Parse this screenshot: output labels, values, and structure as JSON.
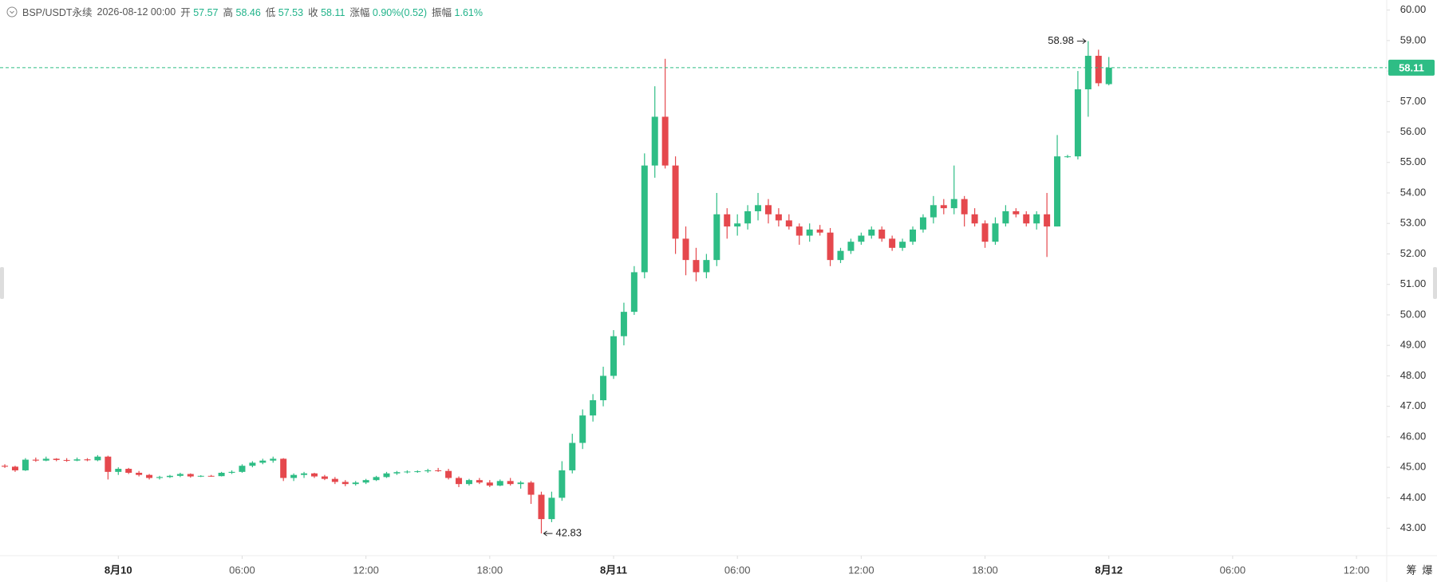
{
  "chart_data": {
    "type": "candlestick",
    "header": {
      "symbol": "BSP/USDT永续",
      "time": "2026-08-12 00:00",
      "fields": [
        {
          "label": "开",
          "value": 57.57
        },
        {
          "label": "高",
          "value": 58.46
        },
        {
          "label": "低",
          "value": 57.53
        },
        {
          "label": "收",
          "value": 58.11
        },
        {
          "label": "涨幅",
          "value": "0.90%(0.52)"
        },
        {
          "label": "振幅",
          "value": "1.61%"
        }
      ]
    },
    "up_color": "#2ebd85",
    "down_color": "#e5484d",
    "x": [
      "2026-08-09 18:30",
      "2026-08-09 19:00",
      "2026-08-09 19:30",
      "2026-08-09 20:00",
      "2026-08-09 20:30",
      "2026-08-09 21:00",
      "2026-08-09 21:30",
      "2026-08-09 22:00",
      "2026-08-09 22:30",
      "2026-08-09 23:00",
      "2026-08-09 23:30",
      "2026-08-10 00:00",
      "2026-08-10 00:30",
      "2026-08-10 01:00",
      "2026-08-10 01:30",
      "2026-08-10 02:00",
      "2026-08-10 02:30",
      "2026-08-10 03:00",
      "2026-08-10 03:30",
      "2026-08-10 04:00",
      "2026-08-10 04:30",
      "2026-08-10 05:00",
      "2026-08-10 05:30",
      "2026-08-10 06:00",
      "2026-08-10 06:30",
      "2026-08-10 07:00",
      "2026-08-10 07:30",
      "2026-08-10 08:00",
      "2026-08-10 08:30",
      "2026-08-10 09:00",
      "2026-08-10 09:30",
      "2026-08-10 10:00",
      "2026-08-10 10:30",
      "2026-08-10 11:00",
      "2026-08-10 11:30",
      "2026-08-10 12:00",
      "2026-08-10 12:30",
      "2026-08-10 13:00",
      "2026-08-10 13:30",
      "2026-08-10 14:00",
      "2026-08-10 14:30",
      "2026-08-10 15:00",
      "2026-08-10 15:30",
      "2026-08-10 16:00",
      "2026-08-10 16:30",
      "2026-08-10 17:00",
      "2026-08-10 17:30",
      "2026-08-10 18:00",
      "2026-08-10 18:30",
      "2026-08-10 19:00",
      "2026-08-10 19:30",
      "2026-08-10 20:00",
      "2026-08-10 20:30",
      "2026-08-10 21:00",
      "2026-08-10 21:30",
      "2026-08-10 22:00",
      "2026-08-10 22:30",
      "2026-08-10 23:00",
      "2026-08-10 23:30",
      "2026-08-11 00:00",
      "2026-08-11 00:30",
      "2026-08-11 01:00",
      "2026-08-11 01:30",
      "2026-08-11 02:00",
      "2026-08-11 02:30",
      "2026-08-11 03:00",
      "2026-08-11 03:30",
      "2026-08-11 04:00",
      "2026-08-11 04:30",
      "2026-08-11 05:00",
      "2026-08-11 05:30",
      "2026-08-11 06:00",
      "2026-08-11 06:30",
      "2026-08-11 07:00",
      "2026-08-11 07:30",
      "2026-08-11 08:00",
      "2026-08-11 08:30",
      "2026-08-11 09:00",
      "2026-08-11 09:30",
      "2026-08-11 10:00",
      "2026-08-11 10:30",
      "2026-08-11 11:00",
      "2026-08-11 11:30",
      "2026-08-11 12:00",
      "2026-08-11 12:30",
      "2026-08-11 13:00",
      "2026-08-11 13:30",
      "2026-08-11 14:00",
      "2026-08-11 14:30",
      "2026-08-11 15:00",
      "2026-08-11 15:30",
      "2026-08-11 16:00",
      "2026-08-11 16:30",
      "2026-08-11 17:00",
      "2026-08-11 17:30",
      "2026-08-11 18:00",
      "2026-08-11 18:30",
      "2026-08-11 19:00",
      "2026-08-11 19:30",
      "2026-08-11 20:00",
      "2026-08-11 20:30",
      "2026-08-11 21:00",
      "2026-08-11 21:30",
      "2026-08-11 22:00",
      "2026-08-11 22:30",
      "2026-08-11 23:00",
      "2026-08-11 23:30",
      "2026-08-12 00:00"
    ],
    "open": [
      45.05,
      45.02,
      44.9,
      45.25,
      45.22,
      45.28,
      45.24,
      45.22,
      45.26,
      45.23,
      45.35,
      44.85,
      44.95,
      44.82,
      44.75,
      44.65,
      44.68,
      44.72,
      44.78,
      44.7,
      44.72,
      44.71,
      44.82,
      44.85,
      45.05,
      45.15,
      45.22,
      45.28,
      44.65,
      44.75,
      44.8,
      44.7,
      44.62,
      44.52,
      44.45,
      44.5,
      44.58,
      44.68,
      44.8,
      44.84,
      44.86,
      44.87,
      44.9,
      44.88,
      44.65,
      44.45,
      44.58,
      44.5,
      44.4,
      44.55,
      44.45,
      44.5,
      44.1,
      43.3,
      44.0,
      44.9,
      45.8,
      46.7,
      47.2,
      48.0,
      49.3,
      50.1,
      51.4,
      54.9,
      56.5,
      54.9,
      52.5,
      51.8,
      51.4,
      51.8,
      53.3,
      52.9,
      53.0,
      53.4,
      53.6,
      53.3,
      53.1,
      52.9,
      52.6,
      52.8,
      52.7,
      51.8,
      52.1,
      52.4,
      52.6,
      52.8,
      52.5,
      52.2,
      52.4,
      52.8,
      53.2,
      53.6,
      53.5,
      53.8,
      53.3,
      53.0,
      52.4,
      53.0,
      53.4,
      53.3,
      53.0,
      53.3,
      52.9,
      55.2,
      55.2,
      57.4,
      58.5,
      57.57
    ],
    "high": [
      45.1,
      45.05,
      45.3,
      45.32,
      45.35,
      45.3,
      45.3,
      45.32,
      45.3,
      45.4,
      45.38,
      45.0,
      44.98,
      44.88,
      44.78,
      44.72,
      44.75,
      44.82,
      44.8,
      44.74,
      44.75,
      44.85,
      44.9,
      45.1,
      45.2,
      45.28,
      45.35,
      45.3,
      44.8,
      44.85,
      44.82,
      44.75,
      44.68,
      44.58,
      44.55,
      44.62,
      44.72,
      44.85,
      44.88,
      44.9,
      44.9,
      44.95,
      44.98,
      44.95,
      44.7,
      44.62,
      44.65,
      44.58,
      44.6,
      44.65,
      44.55,
      44.55,
      44.2,
      44.2,
      45.2,
      46.1,
      46.9,
      47.4,
      48.3,
      49.5,
      50.4,
      51.6,
      55.3,
      57.5,
      58.4,
      55.2,
      52.9,
      52.2,
      52.0,
      54.0,
      53.5,
      53.3,
      53.6,
      54.0,
      53.8,
      53.5,
      53.3,
      53.0,
      53.0,
      52.95,
      52.85,
      52.2,
      52.5,
      52.7,
      52.9,
      52.9,
      52.6,
      52.5,
      52.9,
      53.3,
      53.9,
      53.8,
      54.9,
      53.9,
      53.5,
      53.1,
      53.2,
      53.6,
      53.5,
      53.4,
      53.4,
      54.0,
      55.9,
      55.25,
      58.0,
      58.98,
      58.7,
      58.46
    ],
    "low": [
      44.98,
      44.85,
      44.88,
      45.18,
      45.2,
      45.2,
      45.18,
      45.2,
      45.2,
      45.2,
      44.6,
      44.75,
      44.78,
      44.7,
      44.6,
      44.6,
      44.65,
      44.68,
      44.66,
      44.68,
      44.69,
      44.7,
      44.78,
      44.82,
      45.0,
      45.1,
      45.15,
      44.55,
      44.55,
      44.65,
      44.65,
      44.58,
      44.45,
      44.38,
      44.4,
      44.45,
      44.55,
      44.65,
      44.75,
      44.8,
      44.82,
      44.82,
      44.85,
      44.6,
      44.35,
      44.4,
      44.45,
      44.35,
      44.38,
      44.4,
      44.3,
      43.8,
      42.83,
      43.2,
      43.9,
      44.8,
      45.6,
      46.5,
      47.0,
      47.9,
      49.0,
      50.0,
      51.2,
      54.5,
      54.8,
      52.0,
      51.3,
      51.1,
      51.2,
      51.6,
      52.5,
      52.6,
      52.8,
      53.1,
      53.0,
      52.9,
      52.8,
      52.3,
      52.4,
      52.6,
      51.6,
      51.7,
      52.0,
      52.3,
      52.5,
      52.4,
      52.1,
      52.1,
      52.3,
      52.7,
      53.0,
      53.3,
      53.3,
      52.9,
      52.9,
      52.2,
      52.3,
      52.9,
      53.2,
      52.9,
      52.8,
      51.9,
      52.9,
      55.15,
      55.1,
      56.5,
      57.5,
      57.53
    ],
    "close": [
      45.02,
      44.9,
      45.25,
      45.22,
      45.28,
      45.24,
      45.22,
      45.26,
      45.23,
      45.35,
      44.85,
      44.95,
      44.82,
      44.75,
      44.65,
      44.68,
      44.72,
      44.78,
      44.7,
      44.72,
      44.71,
      44.82,
      44.85,
      45.05,
      45.15,
      45.22,
      45.28,
      44.65,
      44.75,
      44.8,
      44.7,
      44.62,
      44.52,
      44.45,
      44.5,
      44.58,
      44.68,
      44.8,
      44.84,
      44.86,
      44.87,
      44.9,
      44.88,
      44.65,
      44.45,
      44.58,
      44.5,
      44.4,
      44.55,
      44.45,
      44.5,
      44.1,
      43.3,
      44.0,
      44.9,
      45.8,
      46.7,
      47.2,
      48.0,
      49.3,
      50.1,
      51.4,
      54.9,
      56.5,
      54.9,
      52.5,
      51.8,
      51.4,
      51.8,
      53.3,
      52.9,
      53.0,
      53.4,
      53.6,
      53.3,
      53.1,
      52.9,
      52.6,
      52.8,
      52.7,
      51.8,
      52.1,
      52.4,
      52.6,
      52.8,
      52.5,
      52.2,
      52.4,
      52.8,
      53.2,
      53.6,
      53.5,
      53.8,
      53.3,
      53.0,
      52.4,
      53.0,
      53.4,
      53.3,
      53.0,
      53.3,
      52.9,
      55.2,
      55.2,
      57.4,
      58.5,
      57.6,
      58.11
    ],
    "xlim": [
      "2026-08-09 18:16",
      "2026-08-12 13:28"
    ],
    "xticks": [
      {
        "value": "2026-08-10 00:00",
        "label": "8月10"
      },
      {
        "value": "2026-08-10 06:00",
        "label": "06:00"
      },
      {
        "value": "2026-08-10 12:00",
        "label": "12:00"
      },
      {
        "value": "2026-08-10 18:00",
        "label": "18:00"
      },
      {
        "value": "2026-08-11 00:00",
        "label": "8月11"
      },
      {
        "value": "2026-08-11 06:00",
        "label": "06:00"
      },
      {
        "value": "2026-08-11 12:00",
        "label": "12:00"
      },
      {
        "value": "2026-08-11 18:00",
        "label": "18:00"
      },
      {
        "value": "2026-08-12 00:00",
        "label": "8月12"
      },
      {
        "value": "2026-08-12 06:00",
        "label": "06:00"
      },
      {
        "value": "2026-08-12 12:00",
        "label": "12:00"
      }
    ],
    "ylim": [
      42.1,
      60.33
    ],
    "yticks": [
      {
        "value": 43,
        "label": "43.00"
      },
      {
        "value": 44,
        "label": "44.00"
      },
      {
        "value": 45,
        "label": "45.00"
      },
      {
        "value": 46,
        "label": "46.00"
      },
      {
        "value": 47,
        "label": "47.00"
      },
      {
        "value": 48,
        "label": "48.00"
      },
      {
        "value": 49,
        "label": "49.00"
      },
      {
        "value": 50,
        "label": "50.00"
      },
      {
        "value": 51,
        "label": "51.00"
      },
      {
        "value": 52,
        "label": "52.00"
      },
      {
        "value": 53,
        "label": "53.00"
      },
      {
        "value": 54,
        "label": "54.00"
      },
      {
        "value": 55,
        "label": "55.00"
      },
      {
        "value": 56,
        "label": "56.00"
      },
      {
        "value": 57,
        "label": "57.00"
      },
      {
        "value": 58,
        "label": "58.00"
      },
      {
        "value": 59,
        "label": "59.00"
      },
      {
        "value": 60,
        "label": "60.00"
      }
    ],
    "price_line": 58.11,
    "max_marker": 58.98,
    "min_marker": 42.83,
    "toolbar": [
      "筹",
      "爆"
    ]
  }
}
